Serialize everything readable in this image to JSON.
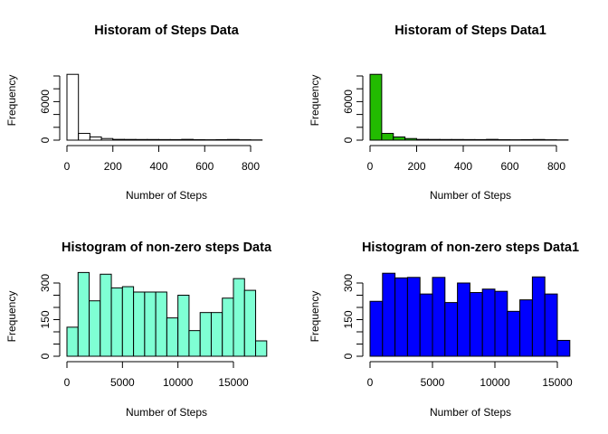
{
  "chart_data": [
    {
      "type": "bar",
      "title": "Historam of Steps Data",
      "xlabel": "Number of Steps",
      "ylabel": "Frequency",
      "bar_color": "#ffffff",
      "bin_width": 50,
      "bin_start": 0,
      "values": [
        10250,
        1050,
        500,
        250,
        120,
        110,
        100,
        100,
        90,
        85,
        120,
        70,
        60,
        80,
        100,
        60,
        40
      ],
      "xlim": [
        0,
        850
      ],
      "ylim": [
        0,
        10250
      ],
      "x_ticks": [
        0,
        200,
        400,
        600,
        800
      ],
      "y_ticks": [
        0,
        2000,
        4000,
        6000,
        8000,
        10000
      ],
      "y_tick_labels": [
        "0",
        "",
        "",
        "6000",
        "",
        ""
      ]
    },
    {
      "type": "bar",
      "title": "Historam of Steps Data1",
      "xlabel": "Number of Steps",
      "ylabel": "Frequency",
      "bar_color": "#22bb00",
      "bin_width": 50,
      "bin_start": 0,
      "values": [
        10250,
        1050,
        500,
        250,
        120,
        110,
        100,
        100,
        90,
        85,
        120,
        70,
        60,
        80,
        100,
        60,
        40
      ],
      "xlim": [
        0,
        850
      ],
      "ylim": [
        0,
        10250
      ],
      "x_ticks": [
        0,
        200,
        400,
        600,
        800
      ],
      "y_ticks": [
        0,
        2000,
        4000,
        6000,
        8000,
        10000
      ],
      "y_tick_labels": [
        "0",
        "",
        "",
        "6000",
        "",
        ""
      ]
    },
    {
      "type": "bar",
      "title": "Histogram of non-zero steps Data",
      "xlabel": "Number of Steps",
      "ylabel": "Frequency",
      "bar_color": "#7fffd4",
      "bin_width": 1000,
      "bin_start": 0,
      "values": [
        119,
        343,
        227,
        336,
        280,
        285,
        263,
        263,
        263,
        157,
        250,
        105,
        179,
        179,
        238,
        318,
        270,
        63
      ],
      "xlim": [
        0,
        18000
      ],
      "ylim": [
        0,
        340
      ],
      "x_ticks": [
        0,
        5000,
        10000,
        15000
      ],
      "y_ticks": [
        0,
        50,
        100,
        150,
        200,
        250,
        300
      ],
      "y_tick_labels": [
        "0",
        "",
        "",
        "150",
        "",
        "",
        "300"
      ]
    },
    {
      "type": "bar",
      "title": "Histogram of non-zero steps Data1",
      "xlabel": "Number of Steps",
      "ylabel": "Frequency",
      "bar_color": "#0000ff",
      "bin_width": 1000,
      "bin_start": 0,
      "values": [
        225,
        340,
        321,
        323,
        255,
        323,
        220,
        300,
        261,
        275,
        266,
        184,
        231,
        325,
        255,
        65
      ],
      "xlim": [
        0,
        16000
      ],
      "ylim": [
        0,
        340
      ],
      "x_ticks": [
        0,
        5000,
        10000,
        15000
      ],
      "y_ticks": [
        0,
        50,
        100,
        150,
        200,
        250,
        300
      ],
      "y_tick_labels": [
        "0",
        "",
        "",
        "150",
        "",
        "",
        "300"
      ]
    }
  ]
}
